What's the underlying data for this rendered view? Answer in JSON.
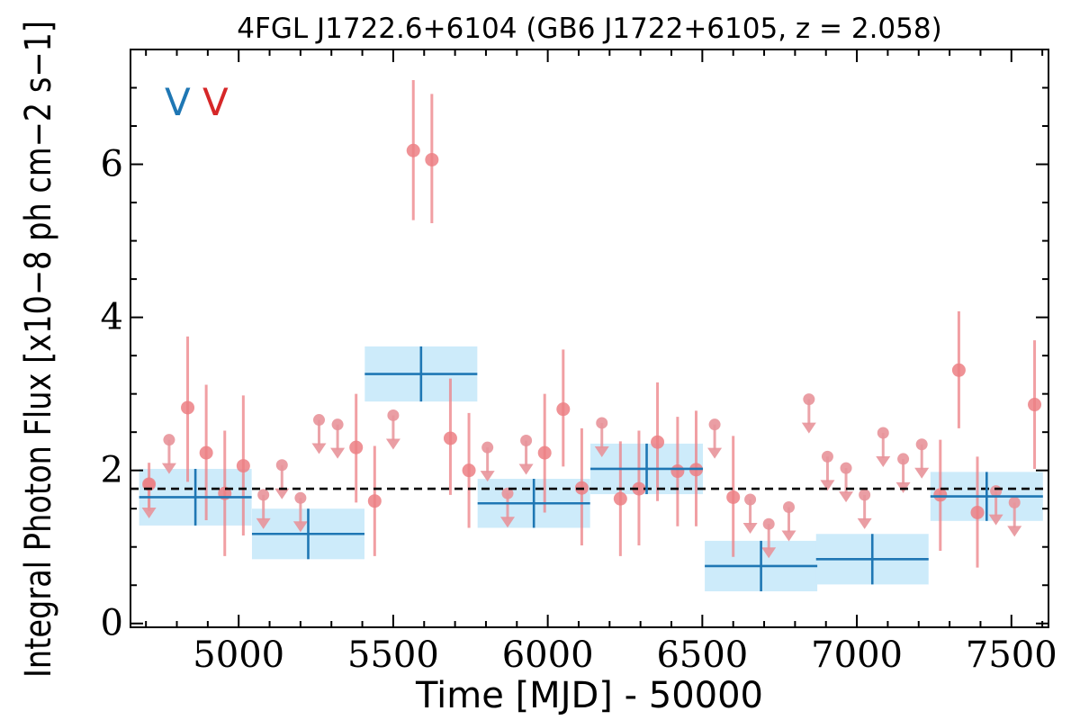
{
  "chart_data": {
    "type": "scatter",
    "title": "4FGL J1722.6+6104 (GB6 J1722+6105, z = 2.058)",
    "xlabel": "Time [MJD] - 50000",
    "ylabel": "Integral Photon Flux [x10−8 ph cm−2 s−1]",
    "xlim": [
      4650,
      7620
    ],
    "ylim": [
      -0.05,
      7.5
    ],
    "xticks": [
      5000,
      5500,
      6000,
      6500,
      7000,
      7500
    ],
    "yticks": [
      0,
      2,
      4,
      6
    ],
    "grid": false,
    "reference_line": {
      "y": 1.76,
      "style": "dashed",
      "color": "#000000"
    },
    "legend_marks": [
      {
        "text": "V",
        "color": "#1f77b4"
      },
      {
        "text": "V",
        "color": "#d62728"
      }
    ],
    "colors": {
      "detection": "#ec7f84",
      "upper_limit": "#e8949a",
      "bin_line": "#1f77b4",
      "bin_box": "#cdebfa"
    },
    "series": [
      {
        "type": "binned_flux",
        "points": [
          {
            "x": 4860,
            "xerr": 182,
            "y": 1.65,
            "yerr": 0.37
          },
          {
            "x": 5225,
            "xerr": 182,
            "y": 1.17,
            "yerr": 0.33
          },
          {
            "x": 5590,
            "xerr": 182,
            "y": 3.26,
            "yerr": 0.36
          },
          {
            "x": 5955,
            "xerr": 182,
            "y": 1.57,
            "yerr": 0.32
          },
          {
            "x": 6320,
            "xerr": 182,
            "y": 2.02,
            "yerr": 0.33
          },
          {
            "x": 6690,
            "xerr": 182,
            "y": 0.75,
            "yerr": 0.33
          },
          {
            "x": 7050,
            "xerr": 182,
            "y": 0.84,
            "yerr": 0.33
          },
          {
            "x": 7420,
            "xerr": 182,
            "y": 1.66,
            "yerr": 0.32
          }
        ]
      },
      {
        "type": "detection",
        "points": [
          {
            "x": 4710,
            "y": 1.82,
            "ylo": 1.47,
            "yhi": 2.1
          },
          {
            "x": 4835,
            "y": 2.82,
            "ylo": 1.85,
            "yhi": 3.75
          },
          {
            "x": 4895,
            "y": 2.23,
            "ylo": 1.35,
            "yhi": 3.12
          },
          {
            "x": 4955,
            "y": 1.7,
            "ylo": 0.88,
            "yhi": 2.52
          },
          {
            "x": 5015,
            "y": 2.06,
            "ylo": 1.15,
            "yhi": 2.98
          },
          {
            "x": 5380,
            "y": 2.3,
            "ylo": 1.58,
            "yhi": 3.0
          },
          {
            "x": 5440,
            "y": 1.6,
            "ylo": 0.88,
            "yhi": 2.32
          },
          {
            "x": 5565,
            "y": 6.18,
            "ylo": 5.27,
            "yhi": 7.1
          },
          {
            "x": 5625,
            "y": 6.06,
            "ylo": 5.23,
            "yhi": 6.92
          },
          {
            "x": 5685,
            "y": 2.42,
            "ylo": 1.68,
            "yhi": 3.2
          },
          {
            "x": 5745,
            "y": 2.0,
            "ylo": 1.25,
            "yhi": 2.75
          },
          {
            "x": 5990,
            "y": 2.23,
            "ylo": 1.45,
            "yhi": 3.0
          },
          {
            "x": 6050,
            "y": 2.8,
            "ylo": 2.05,
            "yhi": 3.58
          },
          {
            "x": 6110,
            "y": 1.77,
            "ylo": 1.02,
            "yhi": 2.55
          },
          {
            "x": 6235,
            "y": 1.63,
            "ylo": 0.88,
            "yhi": 2.38
          },
          {
            "x": 6295,
            "y": 1.76,
            "ylo": 1.02,
            "yhi": 2.52
          },
          {
            "x": 6355,
            "y": 2.37,
            "ylo": 1.6,
            "yhi": 3.15
          },
          {
            "x": 6420,
            "y": 1.99,
            "ylo": 1.27,
            "yhi": 2.7
          },
          {
            "x": 6480,
            "y": 2.01,
            "ylo": 1.27,
            "yhi": 2.78
          },
          {
            "x": 6600,
            "y": 1.65,
            "ylo": 0.87,
            "yhi": 2.45
          },
          {
            "x": 7270,
            "y": 1.68,
            "ylo": 0.95,
            "yhi": 2.4
          },
          {
            "x": 7330,
            "y": 3.31,
            "ylo": 2.55,
            "yhi": 4.08
          },
          {
            "x": 7390,
            "y": 1.45,
            "ylo": 0.73,
            "yhi": 2.18
          },
          {
            "x": 7575,
            "y": 2.86,
            "ylo": 2.02,
            "yhi": 3.7
          }
        ]
      },
      {
        "type": "upper_limit",
        "points": [
          {
            "x": 4710,
            "y": 1.82
          },
          {
            "x": 4775,
            "y": 2.4
          },
          {
            "x": 5080,
            "y": 1.68
          },
          {
            "x": 5140,
            "y": 2.07
          },
          {
            "x": 5200,
            "y": 1.64
          },
          {
            "x": 5260,
            "y": 2.66
          },
          {
            "x": 5320,
            "y": 2.6
          },
          {
            "x": 5500,
            "y": 2.72
          },
          {
            "x": 5805,
            "y": 2.3
          },
          {
            "x": 5870,
            "y": 1.7
          },
          {
            "x": 5930,
            "y": 2.39
          },
          {
            "x": 6175,
            "y": 2.62
          },
          {
            "x": 6540,
            "y": 2.6
          },
          {
            "x": 6655,
            "y": 1.62
          },
          {
            "x": 6715,
            "y": 1.3
          },
          {
            "x": 6780,
            "y": 1.52
          },
          {
            "x": 6845,
            "y": 2.93
          },
          {
            "x": 6905,
            "y": 2.18
          },
          {
            "x": 6965,
            "y": 2.03
          },
          {
            "x": 7025,
            "y": 1.68
          },
          {
            "x": 7085,
            "y": 2.49
          },
          {
            "x": 7150,
            "y": 2.15
          },
          {
            "x": 7210,
            "y": 2.34
          },
          {
            "x": 7450,
            "y": 1.73
          },
          {
            "x": 7510,
            "y": 1.58
          }
        ]
      }
    ]
  }
}
